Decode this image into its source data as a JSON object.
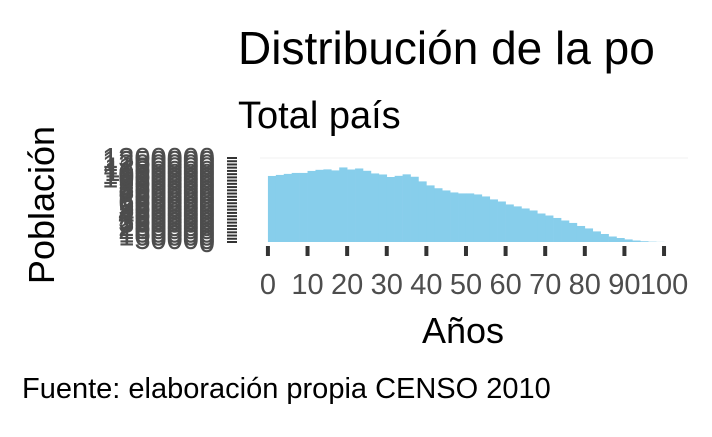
{
  "chart_data": {
    "type": "bar",
    "title": "Distribución de la po",
    "subtitle": "Total país",
    "xlabel": "Años",
    "ylabel": "Población",
    "caption": "Fuente: elaboración propia CENSO 2010",
    "colors": {
      "bar": "#87CEEB",
      "text": "#000000",
      "ticks": "#4d4d4d"
    },
    "grid": false,
    "xlim": [
      -2,
      101
    ],
    "ylim": [
      0,
      1300000
    ],
    "x_ticks": [
      0,
      10,
      20,
      30,
      40,
      50,
      60,
      70,
      80,
      90,
      100
    ],
    "x_tick_labels": [
      "0",
      "10",
      "20",
      "30",
      "40",
      "50",
      "60",
      "70",
      "80",
      "90",
      "100"
    ],
    "y_ticks": [
      0,
      50000,
      100000,
      150000,
      200000,
      250000,
      300000,
      350000,
      400000,
      450000,
      500000,
      550000,
      600000,
      650000,
      700000,
      750000,
      800000,
      850000,
      900000,
      950000,
      1000000,
      1050000,
      1100000,
      1150000,
      1200000,
      1250000,
      1300000
    ],
    "y_tick_labels": [
      "0",
      "50000",
      "100000",
      "150000",
      "200000",
      "250000",
      "300000",
      "350000",
      "400000",
      "450000",
      "500000",
      "550000",
      "600000",
      "650000",
      "700000",
      "750000",
      "800000",
      "850000",
      "900000",
      "950000",
      "1000000",
      "1050000",
      "1100000",
      "1150000",
      "1200000",
      "1250000",
      "1300000"
    ],
    "categories": [
      0,
      2,
      4,
      6,
      8,
      10,
      12,
      14,
      16,
      18,
      20,
      22,
      24,
      26,
      28,
      30,
      32,
      34,
      36,
      38,
      40,
      42,
      44,
      46,
      48,
      50,
      52,
      54,
      56,
      58,
      60,
      62,
      64,
      66,
      68,
      70,
      72,
      74,
      76,
      78,
      80,
      82,
      84,
      86,
      88,
      90,
      92,
      94,
      96,
      98
    ],
    "values": [
      1022000,
      1038000,
      1054000,
      1069000,
      1069000,
      1100000,
      1117000,
      1124000,
      1108000,
      1154000,
      1122000,
      1138000,
      1102000,
      1061000,
      1045000,
      1006000,
      1024000,
      1047000,
      1010000,
      938000,
      876000,
      832000,
      798000,
      767000,
      752000,
      752000,
      736000,
      705000,
      659000,
      627000,
      581000,
      551000,
      519000,
      488000,
      441000,
      410000,
      372000,
      333000,
      295000,
      248000,
      210000,
      164000,
      124000,
      85000,
      62000,
      40000,
      23000,
      12000,
      5000,
      2000
    ]
  }
}
